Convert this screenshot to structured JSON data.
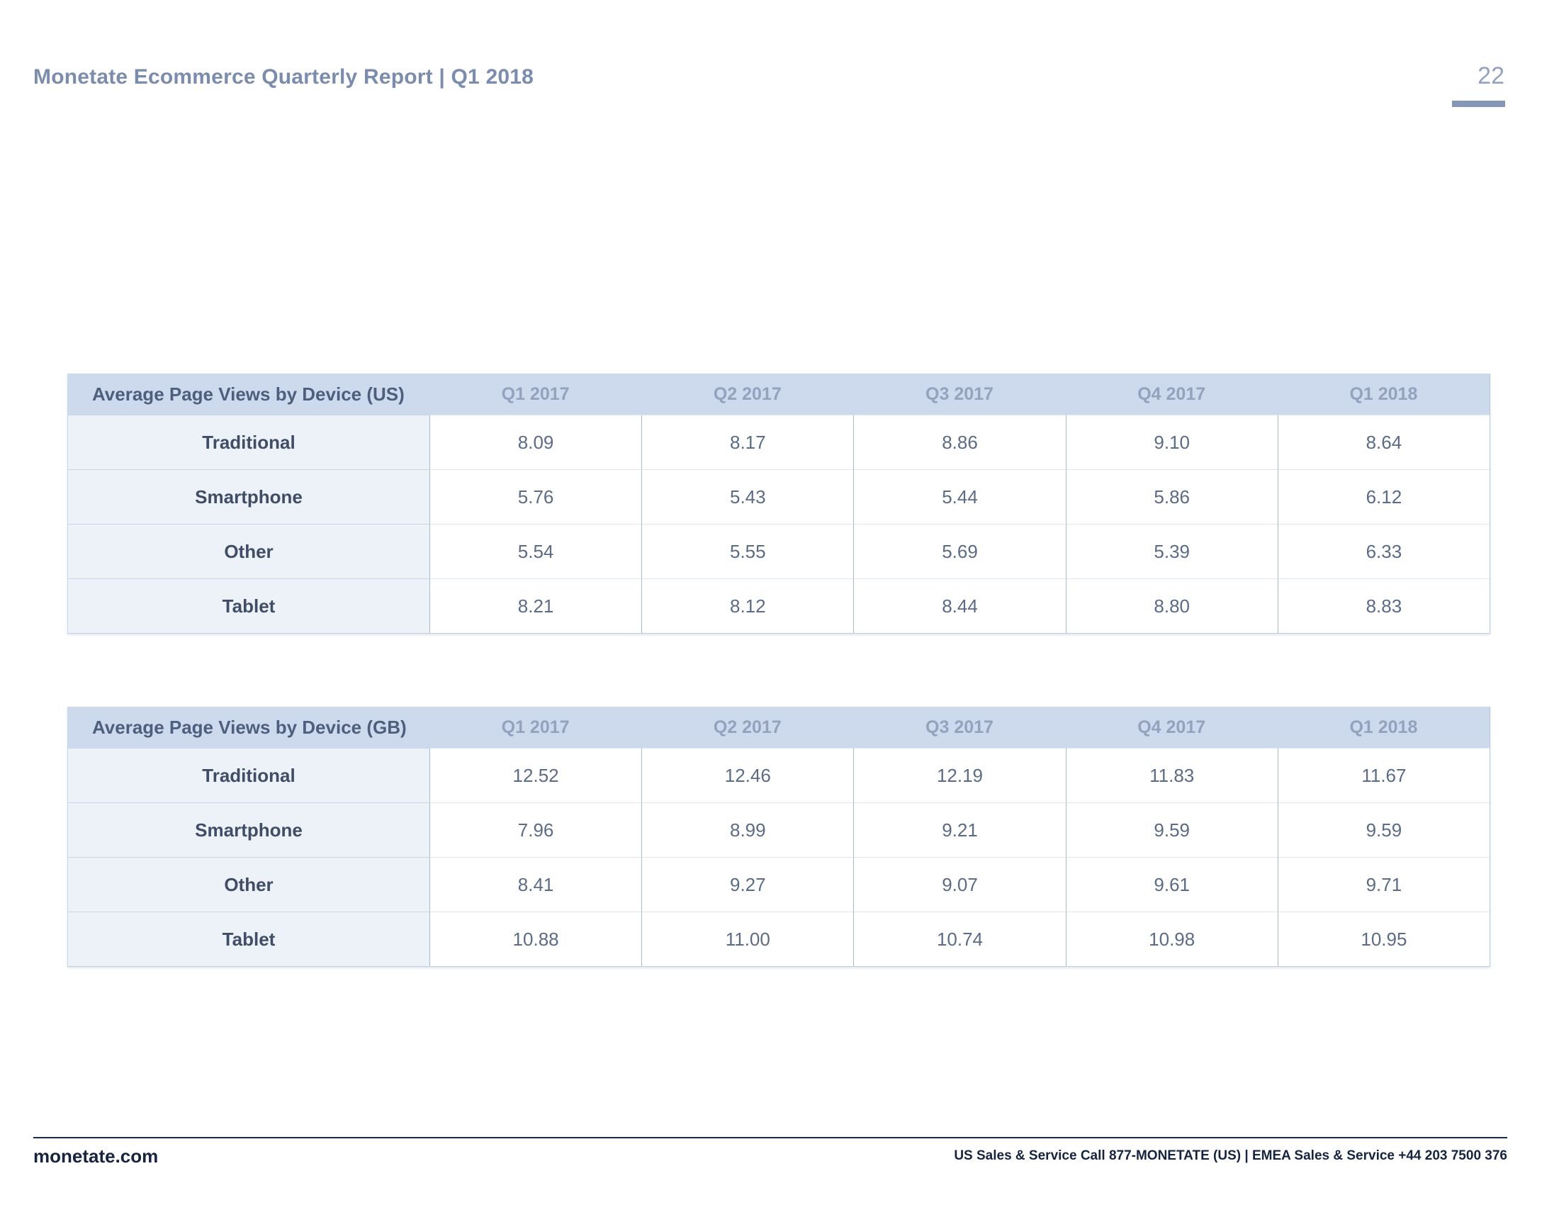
{
  "page": {
    "title": "Monetate Ecommerce Quarterly Report | Q1 2018",
    "page_number": "22"
  },
  "tables": [
    {
      "title": "Average Page Views by Device (US)",
      "columns": [
        "Q1 2017",
        "Q2 2017",
        "Q3 2017",
        "Q4 2017",
        "Q1 2018"
      ],
      "rows": [
        {
          "label": "Traditional",
          "values": [
            "8.09",
            "8.17",
            "8.86",
            "9.10",
            "8.64"
          ]
        },
        {
          "label": "Smartphone",
          "values": [
            "5.76",
            "5.43",
            "5.44",
            "5.86",
            "6.12"
          ]
        },
        {
          "label": "Other",
          "values": [
            "5.54",
            "5.55",
            "5.69",
            "5.39",
            "6.33"
          ]
        },
        {
          "label": "Tablet",
          "values": [
            "8.21",
            "8.12",
            "8.44",
            "8.80",
            "8.83"
          ]
        }
      ]
    },
    {
      "title": "Average Page Views by Device (GB)",
      "columns": [
        "Q1 2017",
        "Q2 2017",
        "Q3 2017",
        "Q4 2017",
        "Q1 2018"
      ],
      "rows": [
        {
          "label": "Traditional",
          "values": [
            "12.52",
            "12.46",
            "12.19",
            "11.83",
            "11.67"
          ]
        },
        {
          "label": "Smartphone",
          "values": [
            "7.96",
            "8.99",
            "9.21",
            "9.59",
            "9.59"
          ]
        },
        {
          "label": "Other",
          "values": [
            "8.41",
            "9.27",
            "9.07",
            "9.61",
            "9.71"
          ]
        },
        {
          "label": "Tablet",
          "values": [
            "10.88",
            "11.00",
            "10.74",
            "10.98",
            "10.95"
          ]
        }
      ]
    }
  ],
  "footer": {
    "site": "monetate.com",
    "contact": "US Sales & Service Call 877-MONETATE (US) | EMEA Sales & Service +44 203 7500 376"
  },
  "colors": {
    "table_header_band": "#cdd9ed",
    "label_column": "#edf1f8",
    "title_blue": "#7b8cad",
    "footer_navy": "#1b2a47",
    "page_number_bar": "#8596b6"
  }
}
